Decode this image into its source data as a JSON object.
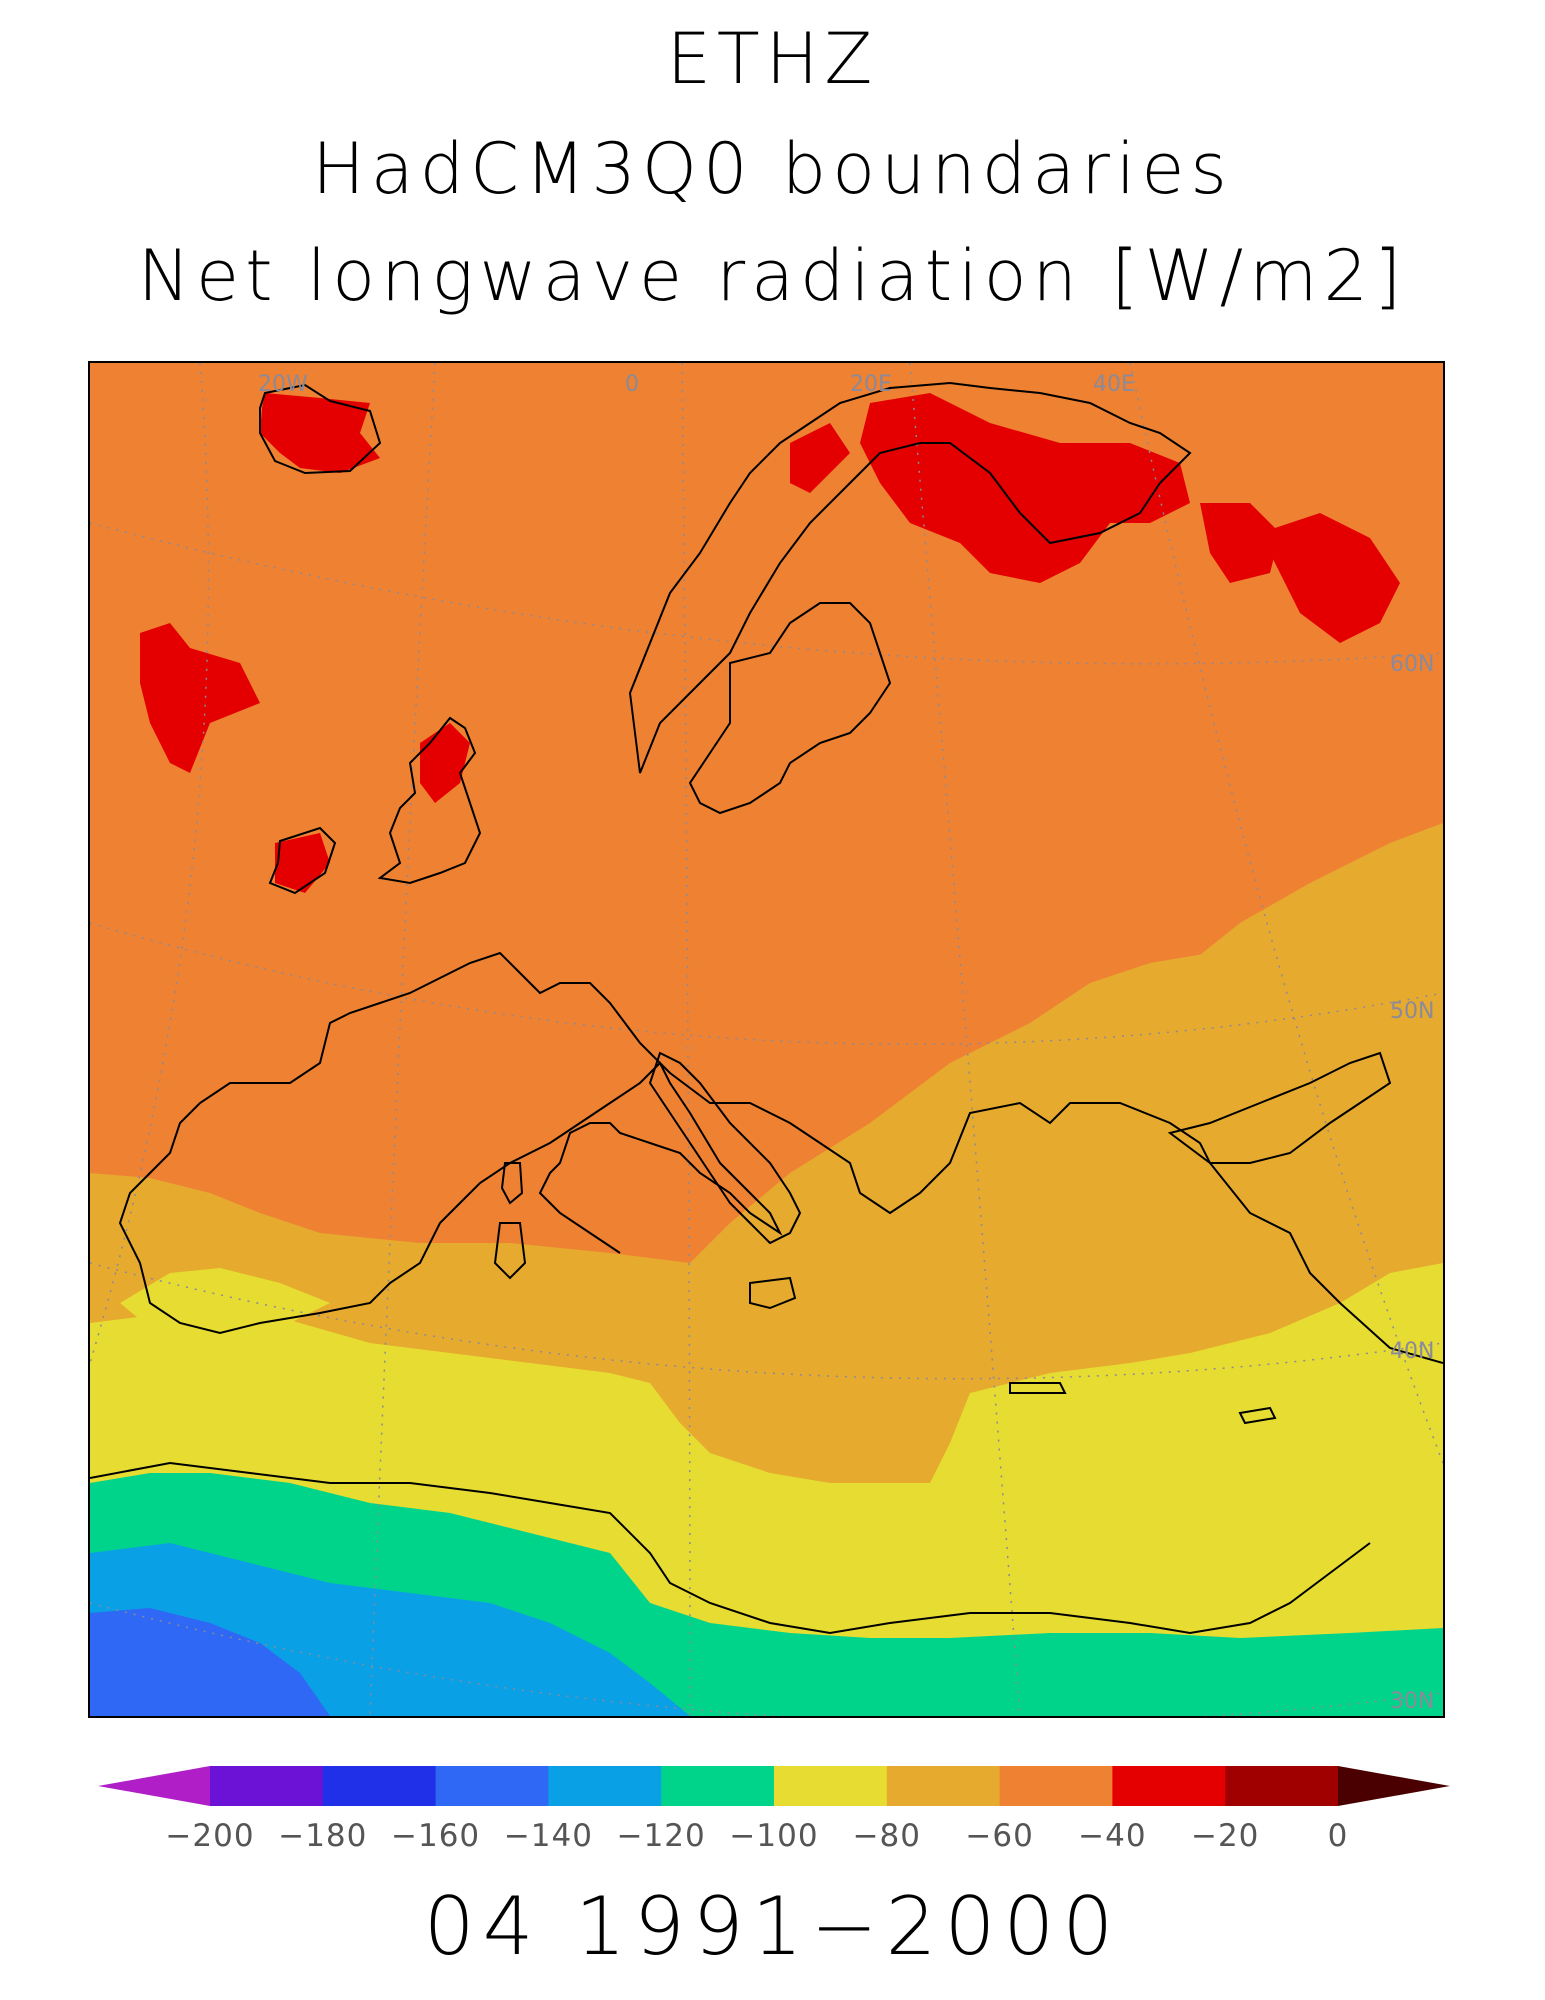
{
  "title": {
    "line1": "ETHZ",
    "line2": "HadCM3Q0 boundaries",
    "line3": "Net longwave radiation [W/m2]"
  },
  "footer": "04 1991−2000",
  "map": {
    "graticule_labels": {
      "lon": [
        "20W",
        "0",
        "20E",
        "40E"
      ],
      "lat": [
        "60N",
        "50N",
        "40N",
        "30N"
      ]
    },
    "field_classes_present": [
      "-120–-100 (green)",
      "-140–-120 (blue)",
      "-100–-80",
      "-80–-60",
      "-60–-40",
      "-40–-20"
    ]
  },
  "colorbar": {
    "ticks": [
      "−200",
      "−180",
      "−160",
      "−140",
      "−120",
      "−100",
      "−80",
      "−60",
      "−40",
      "−20",
      "0"
    ],
    "colors": [
      "#b01ec8",
      "#6c12d6",
      "#2030e8",
      "#2e68f4",
      "#0aa0e6",
      "#00d48a",
      "#e6dc32",
      "#e6aa2e",
      "#ee8232",
      "#e40000",
      "#a00000",
      "#4a0000"
    ]
  }
}
